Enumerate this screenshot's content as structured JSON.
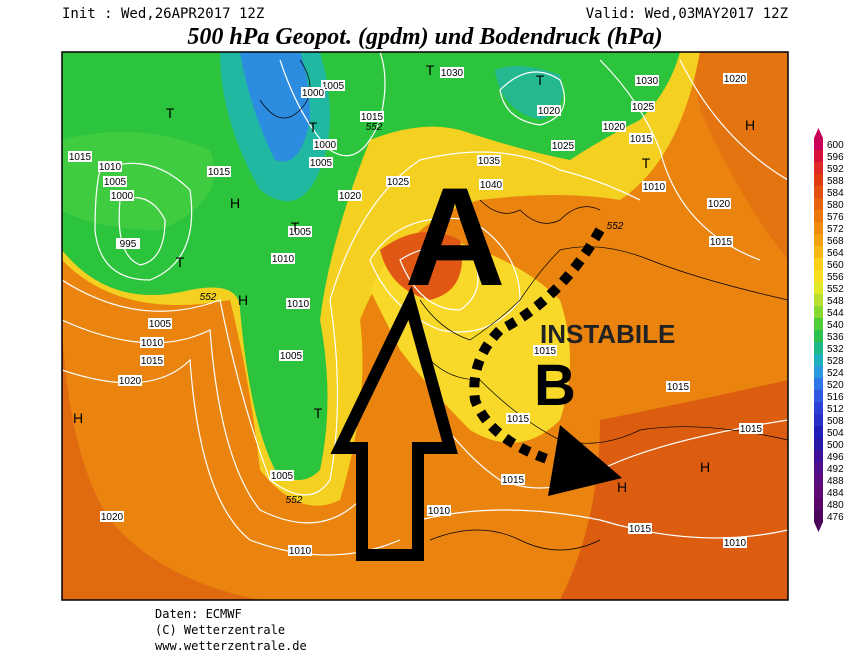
{
  "header": {
    "init": "Init : Wed,26APR2017 12Z",
    "valid": "Valid: Wed,03MAY2017 12Z",
    "title": "500 hPa Geopot. (gpdm) und Bodendruck (hPa)"
  },
  "map": {
    "pressure_labels": [
      "1015",
      "1010",
      "1005",
      "1000",
      "995",
      "1005",
      "1010",
      "1015",
      "1020",
      "1020",
      "1010",
      "1005",
      "1005",
      "1010",
      "1010",
      "1005",
      "1020",
      "1025",
      "1015",
      "1005",
      "1000",
      "1000",
      "1005",
      "1015",
      "1035",
      "1040",
      "1030",
      "1020",
      "1025",
      "1020",
      "1025",
      "1030",
      "1015",
      "1010",
      "1020",
      "1020",
      "1015",
      "1015",
      "1015",
      "1015",
      "1015",
      "1015",
      "1010",
      "1015",
      "1010"
    ],
    "centers": [
      "T",
      "T",
      "T",
      "T",
      "T",
      "T",
      "T",
      "T",
      "H",
      "H",
      "H",
      "H",
      "H",
      "H"
    ],
    "height_labels": [
      "552",
      "552",
      "552",
      "552"
    ],
    "annotations": {
      "a": "A",
      "b": "B",
      "instabile": "INSTABILE"
    }
  },
  "colorbar": {
    "labels": [
      600,
      596,
      592,
      588,
      584,
      580,
      576,
      572,
      568,
      564,
      560,
      556,
      552,
      548,
      544,
      540,
      536,
      532,
      528,
      524,
      520,
      516,
      512,
      508,
      504,
      500,
      496,
      492,
      488,
      484,
      480,
      476
    ],
    "colors": [
      "#c8005a",
      "#d8103c",
      "#e02828",
      "#e03c14",
      "#e45010",
      "#e8640c",
      "#ec780c",
      "#f08c0c",
      "#f4a010",
      "#f8b814",
      "#fcd018",
      "#f8e020",
      "#e0e828",
      "#b8e030",
      "#88d834",
      "#50cc38",
      "#30c050",
      "#20b888",
      "#20b0c0",
      "#2c98e0",
      "#3078e8",
      "#3058e0",
      "#2c40d8",
      "#2830c8",
      "#2020b8",
      "#2818a8",
      "#3c1098",
      "#50108c",
      "#5c0c80",
      "#600874",
      "#580668",
      "#4c045c"
    ]
  },
  "footer": {
    "source": "Daten: ECMWF",
    "copyright": "(C) Wetterzentrale",
    "url": "www.wetterzentrale.de"
  }
}
